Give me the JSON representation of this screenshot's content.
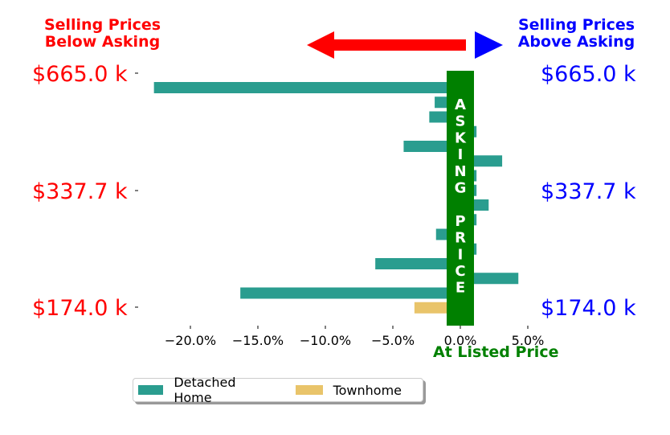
{
  "header": {
    "below_line1": "Selling Prices",
    "below_line2": "Below Asking",
    "above_line1": "Selling Prices",
    "above_line2": "Above Asking"
  },
  "price_labels": {
    "left": [
      "$665.0 k",
      "$337.7 k",
      "$174.0 k"
    ],
    "right": [
      "$665.0 k",
      "$337.7 k",
      "$174.0 k"
    ]
  },
  "asking_price_label": "ASKING PRICE",
  "x_axis_caption": "At Listed Price",
  "colors": {
    "detached": "#2a9d8f",
    "townhome": "#e9c46a",
    "asking_bar": "#008000",
    "below": "#ff0000",
    "above": "#0000ff"
  },
  "legend": {
    "detached": "Detached Home",
    "townhome": "Townhome"
  },
  "chart_data": {
    "type": "bar",
    "orientation": "horizontal",
    "xlabel": "At Listed Price",
    "xlim": [
      -23,
      6
    ],
    "xticks": [
      -20,
      -15,
      -10,
      -5,
      0,
      5
    ],
    "xtick_labels": [
      "−20.0%",
      "−15.0%",
      "−10.0%",
      "−5.0%",
      "0.0%",
      "5.0%"
    ],
    "y_tick_labels": [
      "$665.0 k",
      "$337.7 k",
      "$174.0 k"
    ],
    "series": [
      {
        "name": "Detached Home",
        "values": [
          -22.7,
          -1.9,
          -2.3,
          1.2,
          -4.2,
          3.1,
          1.2,
          1.2,
          2.1,
          1.2,
          -1.8,
          1.2,
          -6.3,
          4.3,
          -16.3,
          null
        ]
      },
      {
        "name": "Townhome",
        "values": [
          null,
          null,
          null,
          null,
          null,
          null,
          null,
          null,
          null,
          null,
          null,
          null,
          null,
          null,
          null,
          -3.4
        ]
      }
    ]
  }
}
